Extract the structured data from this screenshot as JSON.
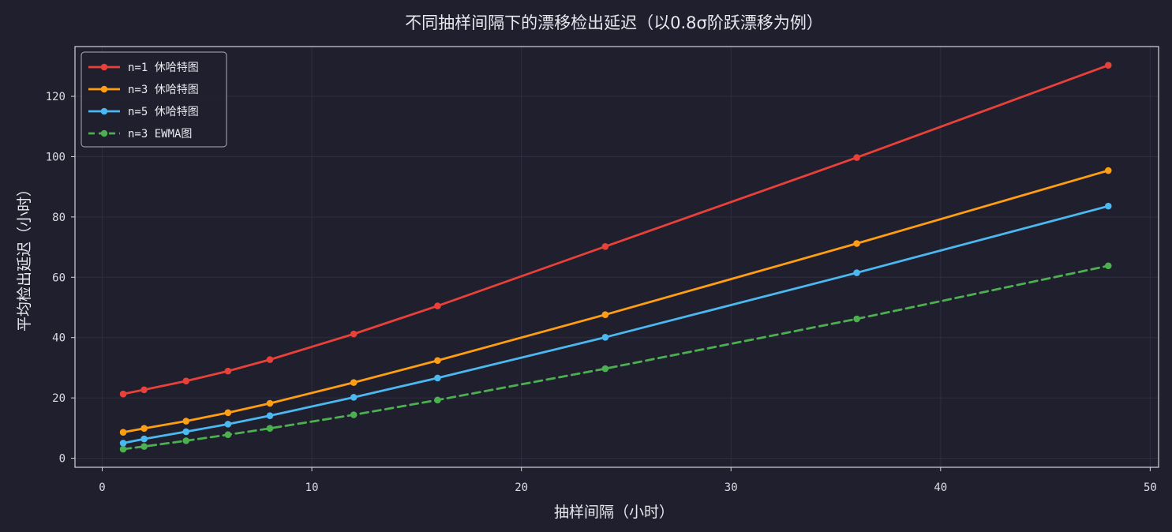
{
  "chart_data": {
    "type": "line",
    "title": "不同抽样间隔下的漂移检出延迟（以0.8σ阶跃漂移为例）",
    "xlabel": "抽样间隔（小时）",
    "ylabel": "平均检出延迟（小时）",
    "xlim": [
      -1.3,
      50.4
    ],
    "ylim": [
      -3.0,
      136.5
    ],
    "x_ticks": [
      0,
      10,
      20,
      30,
      40,
      50
    ],
    "y_ticks": [
      0,
      20,
      40,
      60,
      80,
      100,
      120
    ],
    "grid": true,
    "legend_position": "top-left",
    "x": [
      1,
      2,
      4,
      6,
      8,
      12,
      16,
      24,
      36,
      48
    ],
    "series": [
      {
        "name": "n=1 休哈特图",
        "color": "#e8413a",
        "dash": "solid",
        "values": [
          21.3,
          22.7,
          25.6,
          28.9,
          32.7,
          41.2,
          50.5,
          70.2,
          99.7,
          130.3
        ]
      },
      {
        "name": "n=3 休哈特图",
        "color": "#ff9e12",
        "dash": "solid",
        "values": [
          8.6,
          9.9,
          12.3,
          15.1,
          18.2,
          25.1,
          32.4,
          47.6,
          71.2,
          95.4
        ]
      },
      {
        "name": "n=5 休哈特图",
        "color": "#4cb8f0",
        "dash": "solid",
        "values": [
          5.0,
          6.4,
          8.8,
          11.3,
          14.1,
          20.2,
          26.6,
          40.1,
          61.5,
          83.6
        ]
      },
      {
        "name": "n=3 EWMA图",
        "color": "#4caf50",
        "dash": "dashed",
        "values": [
          3.0,
          3.9,
          5.8,
          7.8,
          9.9,
          14.4,
          19.3,
          29.7,
          46.2,
          63.8
        ]
      }
    ]
  }
}
